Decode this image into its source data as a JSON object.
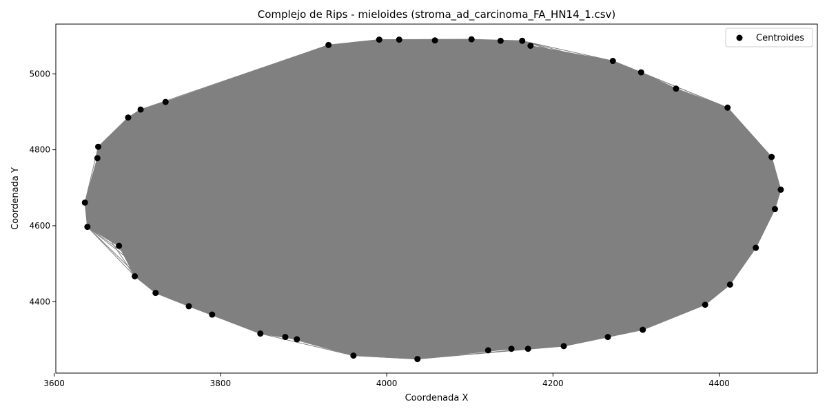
{
  "chart_data": {
    "type": "scatter",
    "title": "Complejo de Rips - mieloides (stroma_ad_carcinoma_FA_HN14_1.csv)",
    "xlabel": "Coordenada X",
    "ylabel": "Coordenada Y",
    "xlim": [
      3602,
      4518
    ],
    "ylim": [
      4212,
      5131
    ],
    "xticks": [
      3600,
      3800,
      4000,
      4200,
      4400
    ],
    "yticks": [
      4400,
      4600,
      4800,
      5000
    ],
    "grid": false,
    "legend": {
      "position": "upper right",
      "entries": [
        "Centroides"
      ]
    },
    "colors": {
      "points": "#000000",
      "edges": "#808080"
    },
    "series": [
      {
        "name": "Centroides",
        "points": [
          [
            3637,
            4661
          ],
          [
            3640,
            4597
          ],
          [
            3653,
            4808
          ],
          [
            3652,
            4778
          ],
          [
            3678,
            4547
          ],
          [
            3689,
            4885
          ],
          [
            3697,
            4467
          ],
          [
            3704,
            4906
          ],
          [
            3722,
            4423
          ],
          [
            3734,
            4926
          ],
          [
            3762,
            4388
          ],
          [
            3790,
            4366
          ],
          [
            3848,
            4316
          ],
          [
            3878,
            4307
          ],
          [
            3892,
            4301
          ],
          [
            3930,
            5076
          ],
          [
            3960,
            4258
          ],
          [
            3991,
            5090
          ],
          [
            4015,
            5090
          ],
          [
            4037,
            4249
          ],
          [
            4058,
            5088
          ],
          [
            4102,
            5091
          ],
          [
            4122,
            4272
          ],
          [
            4137,
            5087
          ],
          [
            4150,
            4276
          ],
          [
            4163,
            5087
          ],
          [
            4170,
            4276
          ],
          [
            4173,
            5074
          ],
          [
            4213,
            4283
          ],
          [
            4266,
            4307
          ],
          [
            4272,
            5034
          ],
          [
            4306,
            5004
          ],
          [
            4308,
            4326
          ],
          [
            4348,
            4961
          ],
          [
            4383,
            4392
          ],
          [
            4410,
            4911
          ],
          [
            4413,
            4445
          ],
          [
            4444,
            4542
          ],
          [
            4463,
            4781
          ],
          [
            4467,
            4644
          ],
          [
            4474,
            4695
          ]
        ]
      }
    ]
  }
}
